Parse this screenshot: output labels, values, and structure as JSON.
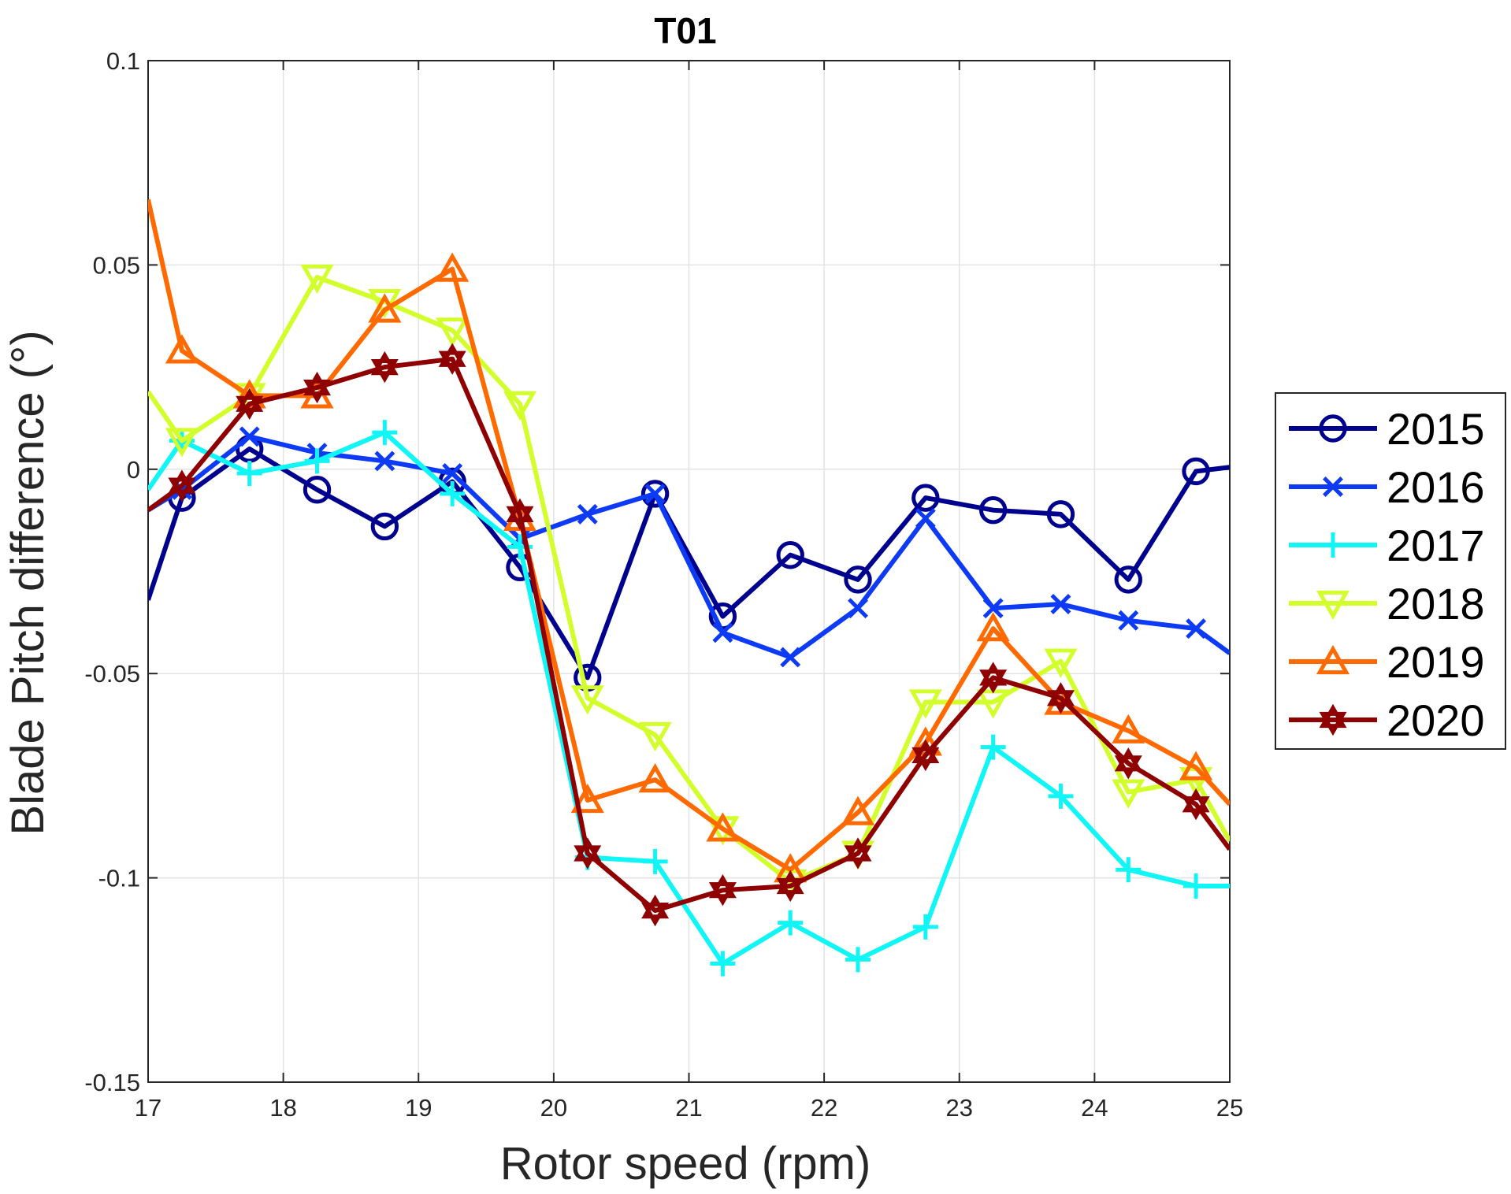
{
  "chart_data": {
    "type": "line",
    "title": "T01",
    "xlabel": "Rotor speed (rpm)",
    "ylabel": "Blade Pitch difference (°)",
    "xlim": [
      17,
      25
    ],
    "ylim": [
      -0.15,
      0.1
    ],
    "xticks": [
      17,
      18,
      19,
      20,
      21,
      22,
      23,
      24,
      25
    ],
    "xtick_labels": [
      "17",
      "18",
      "19",
      "20",
      "21",
      "22",
      "23",
      "24",
      "25"
    ],
    "yticks": [
      -0.15,
      -0.1,
      -0.05,
      0,
      0.05,
      0.1
    ],
    "ytick_labels": [
      "-0.15",
      "-0.1",
      "-0.05",
      "0",
      "0.05",
      "0.1"
    ],
    "grid": true,
    "legend_position": "right-outside",
    "series": [
      {
        "name": "2015",
        "color": "#00008f",
        "marker": "circle",
        "x": [
          17,
          17.25,
          17.75,
          18.25,
          18.75,
          19.25,
          19.75,
          20.25,
          20.75,
          21.25,
          21.75,
          22.25,
          22.75,
          23.25,
          23.75,
          24.25,
          24.75,
          25
        ],
        "y": [
          -0.032,
          -0.007,
          0.005,
          -0.005,
          -0.014,
          -0.003,
          -0.024,
          -0.051,
          -0.006,
          -0.036,
          -0.021,
          -0.027,
          -0.007,
          -0.01,
          -0.011,
          -0.027,
          -0.0005,
          0.0005
        ]
      },
      {
        "name": "2016",
        "color": "#0d3af5",
        "marker": "x",
        "x": [
          17,
          17.25,
          17.75,
          18.25,
          18.75,
          19.25,
          19.75,
          20.25,
          20.75,
          21.25,
          21.75,
          22.25,
          22.75,
          23.25,
          23.75,
          24.25,
          24.75,
          25
        ],
        "y": [
          -0.01,
          -0.005,
          0.008,
          0.004,
          0.002,
          -0.001,
          -0.017,
          -0.011,
          -0.006,
          -0.04,
          -0.046,
          -0.034,
          -0.012,
          -0.034,
          -0.033,
          -0.037,
          -0.039,
          -0.045
        ]
      },
      {
        "name": "2017",
        "color": "#10f5f5",
        "marker": "plus",
        "x": [
          17,
          17.25,
          17.75,
          18.25,
          18.75,
          19.25,
          19.75,
          20.25,
          20.75,
          21.25,
          21.75,
          22.25,
          22.75,
          23.25,
          23.75,
          24.25,
          24.75,
          25
        ],
        "y": [
          -0.005,
          0.007,
          -0.001,
          0.002,
          0.009,
          -0.006,
          -0.019,
          -0.095,
          -0.096,
          -0.121,
          -0.111,
          -0.12,
          -0.112,
          -0.068,
          -0.08,
          -0.098,
          -0.102,
          -0.102
        ]
      },
      {
        "name": "2018",
        "color": "#d2ff2c",
        "marker": "triangle-down",
        "x": [
          17,
          17.25,
          17.75,
          18.25,
          18.75,
          19.25,
          19.75,
          20.25,
          20.75,
          21.25,
          21.75,
          22.25,
          22.75,
          23.25,
          23.75,
          24.25,
          24.75,
          25
        ],
        "y": [
          0.019,
          0.007,
          0.018,
          0.047,
          0.041,
          0.034,
          0.016,
          -0.056,
          -0.065,
          -0.088,
          -0.101,
          -0.094,
          -0.057,
          -0.057,
          -0.047,
          -0.079,
          -0.076,
          -0.091
        ]
      },
      {
        "name": "2019",
        "color": "#ff6a00",
        "marker": "triangle-up",
        "x": [
          17,
          17.25,
          17.75,
          18.25,
          18.75,
          19.25,
          19.75,
          20.25,
          20.75,
          21.25,
          21.75,
          22.25,
          22.75,
          23.25,
          23.75,
          24.25,
          24.75,
          25
        ],
        "y": [
          0.066,
          0.029,
          0.018,
          0.018,
          0.039,
          0.049,
          -0.012,
          -0.081,
          -0.076,
          -0.088,
          -0.098,
          -0.084,
          -0.067,
          -0.039,
          -0.057,
          -0.064,
          -0.073,
          -0.082
        ]
      },
      {
        "name": "2020",
        "color": "#8f0000",
        "marker": "hexagram",
        "x": [
          17,
          17.25,
          17.75,
          18.25,
          18.75,
          19.25,
          19.75,
          20.25,
          20.75,
          21.25,
          21.75,
          22.25,
          22.75,
          23.25,
          23.75,
          24.25,
          24.75,
          25
        ],
        "y": [
          -0.01,
          -0.004,
          0.016,
          0.02,
          0.025,
          0.027,
          -0.011,
          -0.094,
          -0.108,
          -0.103,
          -0.102,
          -0.094,
          -0.07,
          -0.051,
          -0.056,
          -0.072,
          -0.082,
          -0.093
        ]
      }
    ]
  }
}
